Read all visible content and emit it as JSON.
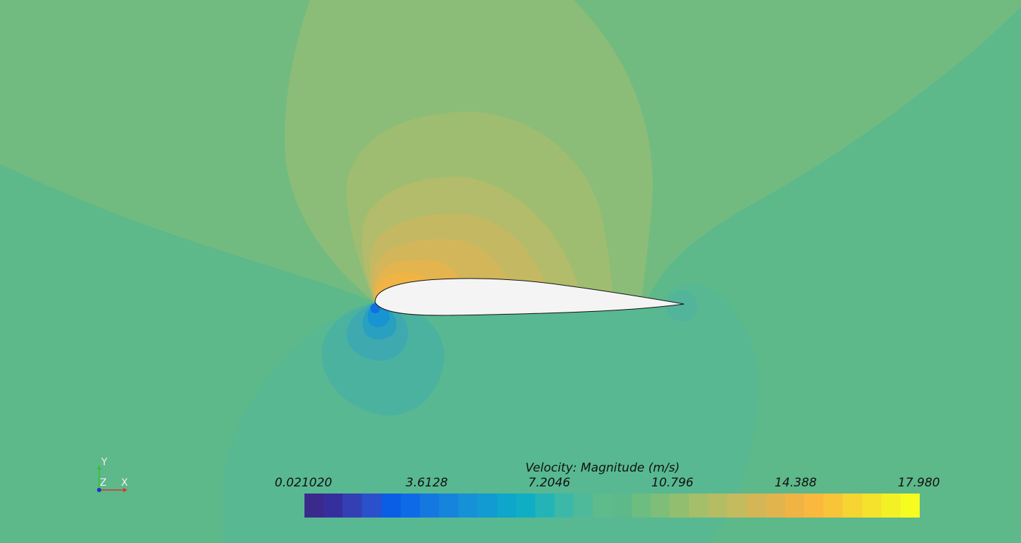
{
  "render_view": {
    "background": "#5db88a",
    "airfoil_fill": "#f4f4f4",
    "airfoil_stroke": "#111111"
  },
  "axes_triad": {
    "x_label": "X",
    "y_label": "Y",
    "z_label": "Z",
    "x_color": "#e23030",
    "y_color": "#2ec42e",
    "z_color": "#2030c8"
  },
  "scalar_bar": {
    "title": "Velocity: Magnitude (m/s)",
    "ticks": [
      "0.021020",
      "3.6128",
      "7.2046",
      "10.796",
      "14.388",
      "17.980"
    ],
    "colors": [
      "#3a2a8c",
      "#352f9e",
      "#3340b4",
      "#2a50cc",
      "#0a5ee6",
      "#0e6ae6",
      "#1478e0",
      "#1684dc",
      "#1690d6",
      "#129ad2",
      "#0ea6ca",
      "#10aec4",
      "#24b4b8",
      "#3cb8a8",
      "#4eba9a",
      "#5ebb8c",
      "#6cbd80",
      "#7ebe78",
      "#92be70",
      "#a4be6a",
      "#b4bc64",
      "#c4ba5e",
      "#d4b656",
      "#e2b44e",
      "#f0b444",
      "#fab83e",
      "#f8c438",
      "#f6d432",
      "#f4e22c",
      "#f4f026",
      "#f6fc20"
    ],
    "gap_index": 16
  }
}
